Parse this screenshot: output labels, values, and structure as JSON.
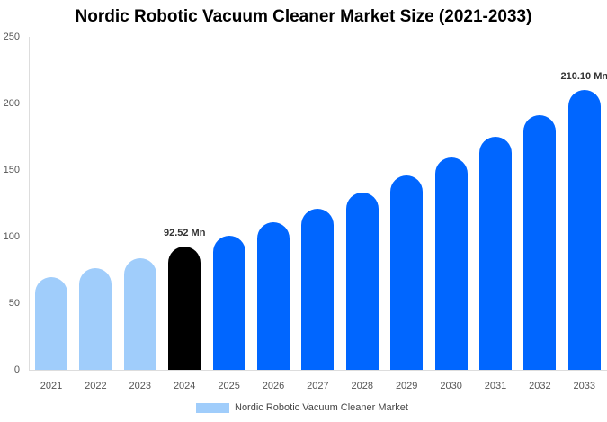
{
  "chart_data": {
    "type": "bar",
    "title": "Nordic Robotic Vacuum Cleaner Market Size (2021-2033)",
    "xlabel": "",
    "ylabel": "",
    "ylim": [
      0,
      250
    ],
    "yticks": [
      "0",
      "50",
      "100",
      "150",
      "200",
      "250"
    ],
    "categories": [
      "2021",
      "2022",
      "2023",
      "2024",
      "2025",
      "2026",
      "2027",
      "2028",
      "2029",
      "2030",
      "2031",
      "2032",
      "2033"
    ],
    "series": [
      {
        "name": "Nordic Robotic Vacuum Cleaner Market",
        "values": [
          69.6,
          76.4,
          83.8,
          92.52,
          100.7,
          110.8,
          120.9,
          133.0,
          145.9,
          159.5,
          175.0,
          191.2,
          210.1
        ]
      }
    ],
    "bar_colors": [
      "#a0cdfb",
      "#a0cdfb",
      "#a0cdfb",
      "#000000",
      "#0066ff",
      "#0066ff",
      "#0066ff",
      "#0066ff",
      "#0066ff",
      "#0066ff",
      "#0066ff",
      "#0066ff",
      "#0066ff"
    ],
    "annotations": [
      {
        "category": "2024",
        "text": "92.52 Mn"
      },
      {
        "category": "2033",
        "text": "210.10 Mn"
      }
    ],
    "legend": {
      "position": "bottom",
      "entries": [
        "Nordic Robotic Vacuum Cleaner Market"
      ]
    },
    "grid": false
  },
  "legend_label": "Nordic Robotic Vacuum Cleaner Market"
}
